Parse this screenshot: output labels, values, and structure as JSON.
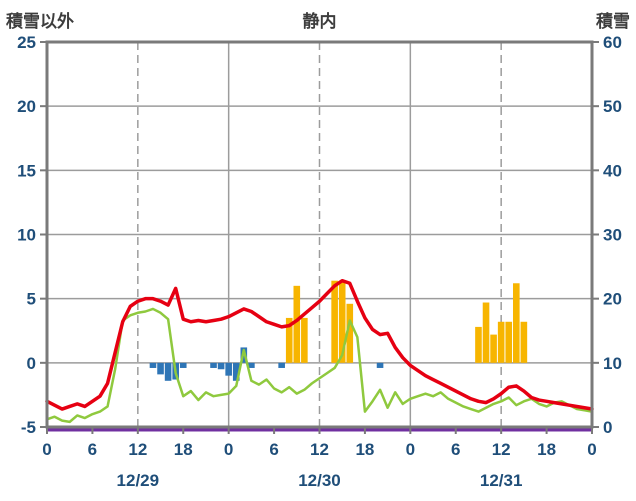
{
  "page": {
    "title_left": "積雪以外",
    "title_center": "静内",
    "title_right": "積雪"
  },
  "chart_data": {
    "type": "line+bar",
    "title": "静内",
    "station": "静内",
    "left_axis": {
      "label": "積雪以外",
      "min": -5,
      "max": 25,
      "ticks": [
        25,
        20,
        15,
        10,
        5,
        0,
        -5
      ]
    },
    "right_axis": {
      "label": "積雪",
      "min": 0,
      "max": 60,
      "ticks": [
        60,
        50,
        40,
        30,
        20,
        10,
        0
      ]
    },
    "x_axis": {
      "hours_total": 72,
      "tick_interval": 6,
      "tick_labels": [
        "0",
        "6",
        "12",
        "18",
        "0",
        "6",
        "12",
        "18",
        "0",
        "6",
        "12",
        "18",
        "0"
      ],
      "date_labels": [
        {
          "label": "12/29",
          "hour": 12
        },
        {
          "label": "12/30",
          "hour": 36
        },
        {
          "label": "12/31",
          "hour": 60
        }
      ],
      "solid_gridlines_hours": [
        24,
        48
      ],
      "dashed_gridlines_hours": [
        12,
        36,
        60
      ]
    },
    "series": [
      {
        "name": "green-line",
        "axis": "left",
        "color_key": "green_line",
        "stroke_width": 2.5,
        "values": [
          -4.4,
          -4.2,
          -4.5,
          -4.6,
          -4.1,
          -4.3,
          -4.0,
          -3.8,
          -3.4,
          -0.5,
          3.3,
          3.7,
          3.9,
          4.0,
          4.2,
          3.9,
          3.4,
          -0.8,
          -2.6,
          -2.2,
          -2.9,
          -2.3,
          -2.6,
          -2.5,
          -2.4,
          -1.8,
          1.0,
          -1.4,
          -1.7,
          -1.3,
          -2.0,
          -2.3,
          -1.9,
          -2.4,
          -2.1,
          -1.6,
          -1.2,
          -0.8,
          -0.4,
          0.6,
          3.3,
          2.0,
          -3.8,
          -3.0,
          -2.1,
          -3.5,
          -2.3,
          -3.2,
          -2.8,
          -2.6,
          -2.4,
          -2.6,
          -2.3,
          -2.8,
          -3.1,
          -3.4,
          -3.6,
          -3.8,
          -3.5,
          -3.2,
          -3.0,
          -2.7,
          -3.3,
          -3.0,
          -2.8,
          -3.2,
          -3.4,
          -3.1,
          -3.0,
          -3.3,
          -3.6,
          -3.7,
          -3.8
        ]
      },
      {
        "name": "red-line",
        "axis": "left",
        "color_key": "red_line",
        "stroke_width": 3.5,
        "values": [
          -3.0,
          -3.3,
          -3.6,
          -3.4,
          -3.2,
          -3.4,
          -3.0,
          -2.6,
          -1.6,
          0.8,
          3.2,
          4.4,
          4.8,
          5.0,
          5.0,
          4.8,
          4.5,
          5.8,
          3.4,
          3.2,
          3.3,
          3.2,
          3.3,
          3.4,
          3.6,
          3.9,
          4.2,
          4.0,
          3.6,
          3.2,
          3.0,
          2.8,
          2.9,
          3.3,
          3.8,
          4.3,
          4.8,
          5.4,
          6.0,
          6.4,
          6.2,
          4.8,
          3.5,
          2.6,
          2.2,
          2.3,
          1.2,
          0.4,
          -0.2,
          -0.6,
          -1.0,
          -1.3,
          -1.6,
          -1.9,
          -2.2,
          -2.5,
          -2.8,
          -3.0,
          -3.1,
          -2.8,
          -2.4,
          -1.9,
          -1.8,
          -2.2,
          -2.7,
          -2.9,
          -3.0,
          -3.1,
          -3.2,
          -3.3,
          -3.4,
          -3.5,
          -3.6
        ]
      }
    ],
    "bars": {
      "gold": [
        {
          "hour": 32,
          "value": 3.5
        },
        {
          "hour": 33,
          "value": 6.0
        },
        {
          "hour": 34,
          "value": 3.5
        },
        {
          "hour": 38,
          "value": 6.4
        },
        {
          "hour": 39,
          "value": 6.4
        },
        {
          "hour": 40,
          "value": 4.6
        },
        {
          "hour": 57,
          "value": 2.8
        },
        {
          "hour": 58,
          "value": 4.7
        },
        {
          "hour": 59,
          "value": 2.2
        },
        {
          "hour": 60,
          "value": 3.2
        },
        {
          "hour": 61,
          "value": 3.2
        },
        {
          "hour": 62,
          "value": 6.2
        },
        {
          "hour": 63,
          "value": 3.2
        }
      ],
      "blue": [
        {
          "hour": 14,
          "value": -0.4
        },
        {
          "hour": 15,
          "value": -0.9
        },
        {
          "hour": 16,
          "value": -1.4
        },
        {
          "hour": 17,
          "value": -1.3
        },
        {
          "hour": 18,
          "value": -0.4
        },
        {
          "hour": 22,
          "value": -0.4
        },
        {
          "hour": 23,
          "value": -0.5
        },
        {
          "hour": 24,
          "value": -1.0
        },
        {
          "hour": 25,
          "value": -1.4
        },
        {
          "hour": 26,
          "value": 1.2
        },
        {
          "hour": 27,
          "value": -0.4
        },
        {
          "hour": 31,
          "value": -0.4
        },
        {
          "hour": 44,
          "value": -0.4
        }
      ]
    },
    "baseline": {
      "name": "purple-baseline",
      "right_axis_value": 0
    },
    "colors": {
      "red_line": "#e60012",
      "green_line": "#8fc93e",
      "blue_bars": "#2e75b6",
      "gold_bars": "#f7b500",
      "purple_line": "#7030a0",
      "grid": "#9c9c9c",
      "border": "#7a7a7a",
      "axis_text": "#1f4e79",
      "title_text": "#3d3d3d",
      "background": "#ffffff"
    }
  }
}
